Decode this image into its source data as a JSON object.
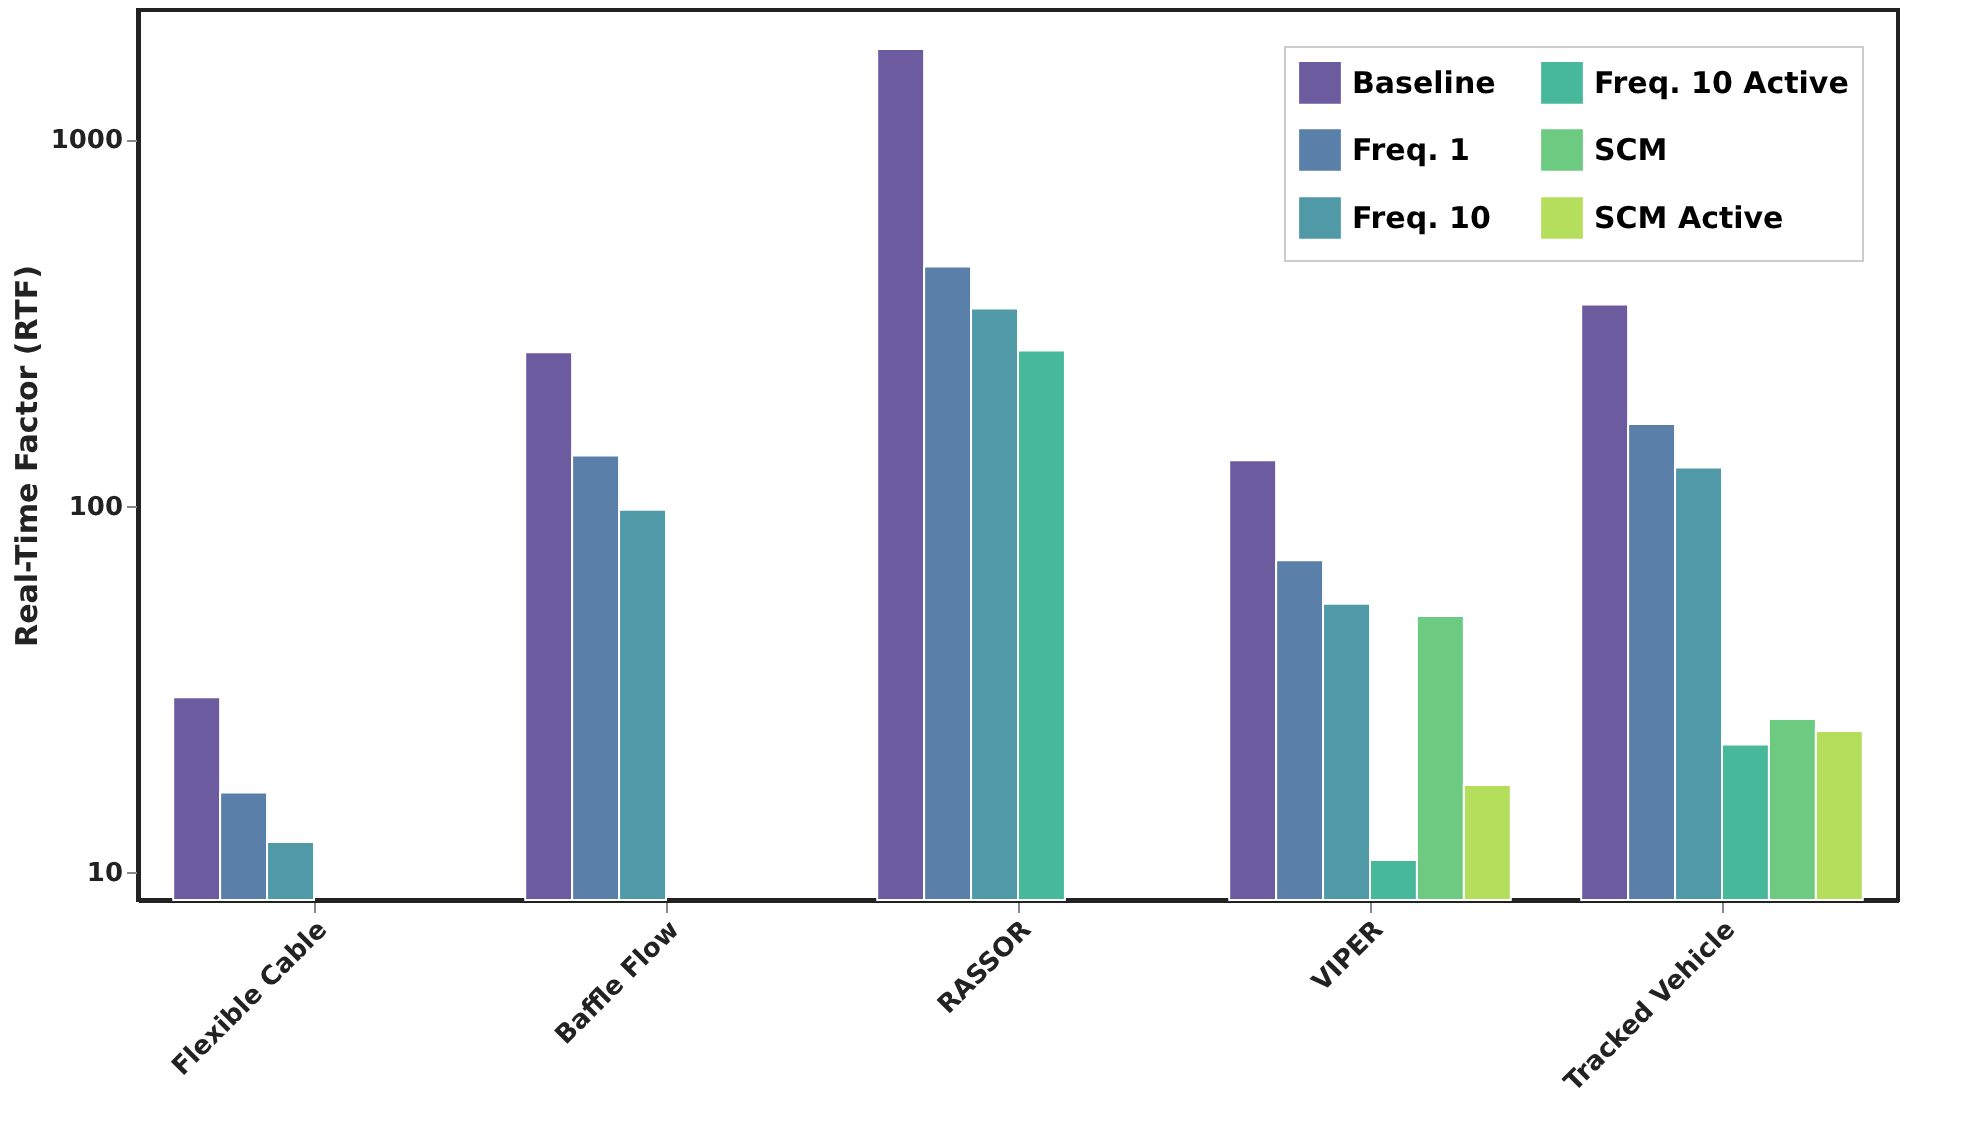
{
  "chart_data": {
    "type": "bar",
    "ylabel": "Real-Time Factor (RTF)",
    "log": true,
    "ylim": [
      8.4,
      2250
    ],
    "yticks": [
      10,
      100,
      1000
    ],
    "grid": false,
    "legend": "top right",
    "categories": [
      "Flexible Cable",
      "Baffle Flow",
      "RASSOR",
      "VIPER",
      "Tracked Vehicle"
    ],
    "series": [
      {
        "name": "Baseline",
        "color": "#6c5b9e",
        "values": [
          30,
          262,
          1760,
          133,
          354
        ]
      },
      {
        "name": "Freq. 1",
        "color": "#5a7fa8",
        "values": [
          16.5,
          137,
          449,
          71,
          167
        ]
      },
      {
        "name": "Freq. 10",
        "color": "#4f9aa6",
        "values": [
          12.1,
          97.5,
          345,
          54,
          127
        ]
      },
      {
        "name": "Freq. 10 Active",
        "color": "#48b89a",
        "values": [
          null,
          null,
          265,
          10.8,
          22.3
        ]
      },
      {
        "name": "SCM",
        "color": "#6ccb80",
        "values": [
          null,
          null,
          null,
          50,
          26.2
        ]
      },
      {
        "name": "SCM Active",
        "color": "#b5de5c",
        "values": [
          null,
          null,
          null,
          17.3,
          24.3
        ]
      }
    ]
  }
}
